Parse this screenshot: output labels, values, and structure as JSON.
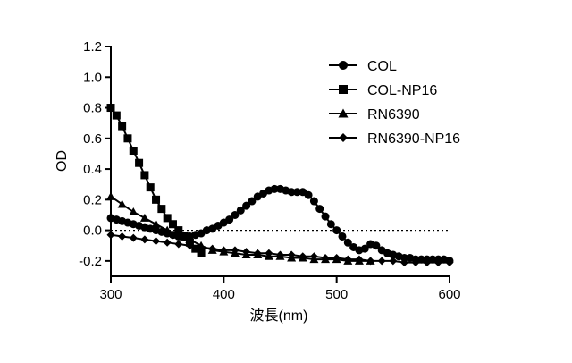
{
  "chart_data": {
    "type": "line",
    "xlabel": "波長(nm)",
    "ylabel": "OD",
    "xlim": [
      300,
      600
    ],
    "ylim": [
      -0.3,
      1.2
    ],
    "xticks": [
      300,
      400,
      500,
      600
    ],
    "yticks": [
      1.2,
      1.0,
      0.8,
      0.6,
      0.4,
      0.2,
      0.0,
      -0.2
    ],
    "ytick_labels": [
      "1.2",
      "1.0",
      "0.8",
      "0.6",
      "0.4",
      "0.2",
      "0.0",
      "-0.2"
    ],
    "grid": false,
    "legend_position": "top-right",
    "reference_line": {
      "y": 0.0,
      "style": "dotted"
    },
    "series": [
      {
        "name": "COL",
        "marker": "circle",
        "x": [
          300,
          305,
          310,
          315,
          320,
          325,
          330,
          335,
          340,
          345,
          350,
          355,
          360,
          365,
          370,
          375,
          380,
          385,
          390,
          395,
          400,
          405,
          410,
          415,
          420,
          425,
          430,
          435,
          440,
          445,
          450,
          455,
          460,
          465,
          470,
          475,
          480,
          485,
          490,
          495,
          500,
          505,
          510,
          515,
          520,
          525,
          530,
          535,
          540,
          545,
          550,
          555,
          560,
          565,
          570,
          575,
          580,
          585,
          590,
          595,
          600
        ],
        "values": [
          0.08,
          0.07,
          0.06,
          0.05,
          0.04,
          0.03,
          0.02,
          0.01,
          0.0,
          -0.01,
          -0.02,
          -0.03,
          -0.04,
          -0.04,
          -0.04,
          -0.03,
          -0.02,
          0.0,
          0.01,
          0.03,
          0.05,
          0.07,
          0.1,
          0.13,
          0.16,
          0.19,
          0.22,
          0.24,
          0.26,
          0.27,
          0.27,
          0.26,
          0.25,
          0.25,
          0.25,
          0.23,
          0.19,
          0.14,
          0.09,
          0.04,
          0.0,
          -0.04,
          -0.08,
          -0.11,
          -0.13,
          -0.12,
          -0.09,
          -0.1,
          -0.13,
          -0.15,
          -0.16,
          -0.17,
          -0.18,
          -0.18,
          -0.19,
          -0.19,
          -0.19,
          -0.19,
          -0.19,
          -0.19,
          -0.2
        ]
      },
      {
        "name": "COL-NP16",
        "marker": "square",
        "x": [
          300,
          305,
          310,
          315,
          320,
          325,
          330,
          335,
          340,
          345,
          350,
          355,
          360,
          365,
          370,
          375,
          380
        ],
        "values": [
          0.8,
          0.75,
          0.68,
          0.6,
          0.52,
          0.44,
          0.36,
          0.28,
          0.2,
          0.14,
          0.08,
          0.04,
          0.0,
          -0.04,
          -0.08,
          -0.12,
          -0.15
        ]
      },
      {
        "name": "RN6390",
        "marker": "triangle",
        "x": [
          300,
          310,
          320,
          330,
          340,
          350,
          360,
          370,
          380,
          390,
          400,
          410,
          420,
          430,
          440,
          450,
          460,
          470,
          480,
          490,
          500,
          510,
          520,
          530
        ],
        "values": [
          0.22,
          0.17,
          0.12,
          0.08,
          0.04,
          0.0,
          -0.03,
          -0.06,
          -0.1,
          -0.13,
          -0.14,
          -0.15,
          -0.16,
          -0.16,
          -0.17,
          -0.17,
          -0.18,
          -0.18,
          -0.19,
          -0.19,
          -0.19,
          -0.2,
          -0.2,
          -0.2
        ]
      },
      {
        "name": "RN6390-NP16",
        "marker": "diamond",
        "x": [
          300,
          310,
          320,
          330,
          340,
          350,
          360,
          370,
          380,
          390,
          400,
          410,
          420,
          430,
          440,
          450,
          460,
          470,
          480,
          490,
          500,
          510,
          520,
          530,
          540,
          550,
          560,
          570,
          580,
          590,
          600
        ],
        "values": [
          -0.03,
          -0.04,
          -0.05,
          -0.06,
          -0.07,
          -0.08,
          -0.09,
          -0.1,
          -0.11,
          -0.12,
          -0.13,
          -0.13,
          -0.14,
          -0.15,
          -0.15,
          -0.16,
          -0.16,
          -0.17,
          -0.17,
          -0.18,
          -0.18,
          -0.19,
          -0.19,
          -0.2,
          -0.2,
          -0.2,
          -0.21,
          -0.21,
          -0.21,
          -0.21,
          -0.21
        ]
      }
    ]
  }
}
